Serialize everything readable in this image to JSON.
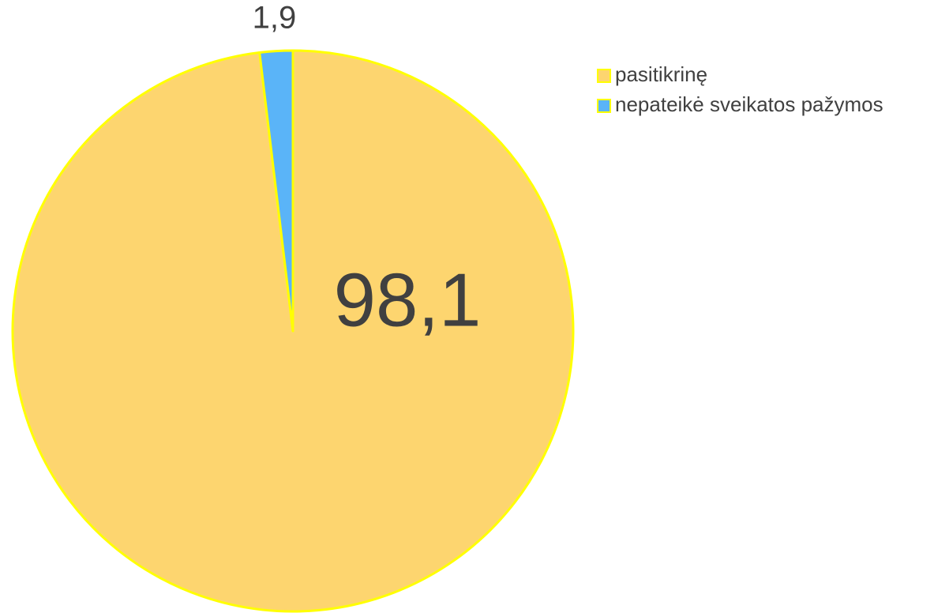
{
  "chart_data": {
    "type": "pie",
    "categories": [
      "pasitikrinę",
      "nepateikė sveikatos pažymos"
    ],
    "values": [
      98.1,
      1.9
    ],
    "value_labels": [
      "98,1",
      "1,9"
    ],
    "colors": [
      "#fdd56f",
      "#5ab4f8"
    ]
  }
}
